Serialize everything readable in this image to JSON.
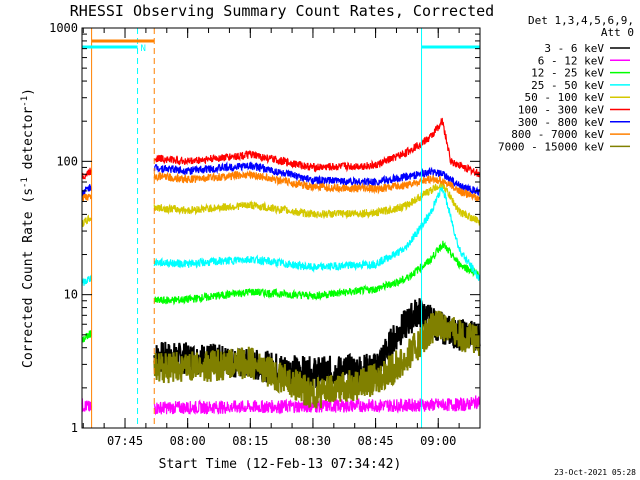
{
  "title": "RHESSI Observing Summary Count Rates, Corrected",
  "footer_date": "23-Oct-2021 05:28",
  "legend": {
    "header": [
      "Det 1,3,4,5,6,9,",
      "Att 0"
    ],
    "entries": [
      {
        "label": "3 - 6 keV",
        "color": "#000000"
      },
      {
        "label": "6 - 12 keV",
        "color": "#ff00ff"
      },
      {
        "label": "12 - 25 keV",
        "color": "#00ff00"
      },
      {
        "label": "25 - 50 keV",
        "color": "#00ffff"
      },
      {
        "label": "50 - 100 keV",
        "color": "#d4c800"
      },
      {
        "label": "100 - 300 keV",
        "color": "#ff0000"
      },
      {
        "label": "300 - 800 keV",
        "color": "#0000ff"
      },
      {
        "label": "800 - 7000 keV",
        "color": "#ff8000"
      },
      {
        "label": "7000 - 15000 keV",
        "color": "#808000"
      }
    ]
  },
  "chart_data": {
    "type": "line",
    "title": "RHESSI Observing Summary Count Rates, Corrected",
    "xlabel": "Start Time (12-Feb-13 07:34:42)",
    "ylabel": "Corrected Count Rate (s^-1 detector^-1)",
    "ylabel_parts": {
      "main": "Corrected Count Rate (s",
      "sup1": "-1",
      "mid": " detector",
      "sup2": "-1",
      "end": ")"
    },
    "y_scale": "log",
    "ylim": [
      1,
      1000
    ],
    "xlim": [
      "07:34:42",
      "09:10:00"
    ],
    "x_ticks": [
      "07:45",
      "08:00",
      "08:15",
      "08:30",
      "08:45",
      "09:00"
    ],
    "y_ticks": [
      "1",
      "10",
      "100",
      "1000"
    ],
    "annotations": {
      "night_label": "N",
      "night_bar_color": "#00ffff",
      "saa_bar_color": "#ff8000",
      "night_markers": [
        "07:34:42",
        "07:48:00",
        "08:56:00",
        "09:10:00"
      ],
      "saa_markers": [
        "07:37:00",
        "07:52:00"
      ]
    },
    "segments": [
      [
        "07:34:42",
        "07:37:00"
      ],
      [
        "07:52:00",
        "09:10:00"
      ]
    ],
    "series": [
      {
        "name": "3 - 6 keV",
        "color": "#000000",
        "points": [
          [
            "07:52",
            "3.4"
          ],
          [
            "08:05",
            "3.3"
          ],
          [
            "08:15",
            "3.0"
          ],
          [
            "08:30",
            "2.6"
          ],
          [
            "08:45",
            "2.8"
          ],
          [
            "08:50",
            "5.0"
          ],
          [
            "08:55",
            "7.5"
          ],
          [
            "09:00",
            "5.8"
          ],
          [
            "09:05",
            "5.0"
          ],
          [
            "09:10",
            "5.0"
          ]
        ]
      },
      {
        "name": "6 - 12 keV",
        "color": "#ff00ff",
        "points": [
          [
            "07:34:42",
            "1.5"
          ],
          [
            "07:37",
            "1.4"
          ],
          [
            "09:07",
            "1.5"
          ],
          [
            "09:10",
            "1.6"
          ]
        ]
      },
      {
        "name": "12 - 25 keV",
        "color": "#00ff00",
        "points": [
          [
            "07:34:42",
            "4.5"
          ],
          [
            "07:37",
            "5.2"
          ],
          [
            "07:52",
            "9.0"
          ],
          [
            "08:00",
            "9.2"
          ],
          [
            "08:15",
            "10.5"
          ],
          [
            "08:30",
            "9.8"
          ],
          [
            "08:45",
            "11.0"
          ],
          [
            "08:52",
            "13.0"
          ],
          [
            "08:58",
            "18.0"
          ],
          [
            "09:01",
            "24.0"
          ],
          [
            "09:05",
            "17.0"
          ],
          [
            "09:10",
            "14.0"
          ]
        ]
      },
      {
        "name": "25 - 50 keV",
        "color": "#00ffff",
        "points": [
          [
            "07:34:42",
            "12.0"
          ],
          [
            "07:37",
            "13.5"
          ],
          [
            "07:52",
            "17.5"
          ],
          [
            "08:00",
            "17.0"
          ],
          [
            "08:15",
            "18.5"
          ],
          [
            "08:30",
            "16.0"
          ],
          [
            "08:45",
            "17.0"
          ],
          [
            "08:52",
            "22.0"
          ],
          [
            "08:58",
            "40.0"
          ],
          [
            "09:01",
            "65.0"
          ],
          [
            "09:05",
            "22.0"
          ],
          [
            "09:10",
            "13.0"
          ]
        ]
      },
      {
        "name": "50 - 100 keV",
        "color": "#d4c800",
        "points": [
          [
            "07:34:42",
            "34.0"
          ],
          [
            "07:37",
            "38.0"
          ],
          [
            "07:52",
            "45.0"
          ],
          [
            "08:00",
            "43.0"
          ],
          [
            "08:15",
            "47.0"
          ],
          [
            "08:30",
            "40.0"
          ],
          [
            "08:45",
            "41.0"
          ],
          [
            "08:52",
            "46.0"
          ],
          [
            "08:58",
            "60.0"
          ],
          [
            "09:01",
            "68.0"
          ],
          [
            "09:05",
            "42.0"
          ],
          [
            "09:10",
            "35.0"
          ]
        ]
      },
      {
        "name": "100 - 300 keV",
        "color": "#ff0000",
        "points": [
          [
            "07:34:42",
            "76.0"
          ],
          [
            "07:37",
            "85.0"
          ],
          [
            "07:52",
            "106.0"
          ],
          [
            "08:00",
            "100.0"
          ],
          [
            "08:15",
            "112.0"
          ],
          [
            "08:30",
            "90.0"
          ],
          [
            "08:45",
            "93.0"
          ],
          [
            "08:52",
            "115.0"
          ],
          [
            "08:58",
            "150.0"
          ],
          [
            "09:01",
            "200.0"
          ],
          [
            "09:03",
            "100.0"
          ],
          [
            "09:10",
            "80.0"
          ]
        ]
      },
      {
        "name": "300 - 800 keV",
        "color": "#0000ff",
        "points": [
          [
            "07:34:42",
            "58.0"
          ],
          [
            "07:37",
            "65.0"
          ],
          [
            "07:52",
            "90.0"
          ],
          [
            "08:00",
            "85.0"
          ],
          [
            "08:15",
            "93.0"
          ],
          [
            "08:30",
            "72.0"
          ],
          [
            "08:45",
            "70.0"
          ],
          [
            "08:52",
            "76.0"
          ],
          [
            "08:58",
            "83.0"
          ],
          [
            "09:01",
            "80.0"
          ],
          [
            "09:05",
            "66.0"
          ],
          [
            "09:10",
            "58.0"
          ]
        ]
      },
      {
        "name": "800 - 7000 keV",
        "color": "#ff8000",
        "points": [
          [
            "07:34:42",
            "52.0"
          ],
          [
            "07:37",
            "56.0"
          ],
          [
            "07:52",
            "78.0"
          ],
          [
            "08:00",
            "73.0"
          ],
          [
            "08:15",
            "80.0"
          ],
          [
            "08:30",
            "64.0"
          ],
          [
            "08:45",
            "62.0"
          ],
          [
            "08:52",
            "66.0"
          ],
          [
            "08:58",
            "73.0"
          ],
          [
            "09:01",
            "72.0"
          ],
          [
            "09:05",
            "60.0"
          ],
          [
            "09:10",
            "52.0"
          ]
        ]
      },
      {
        "name": "7000 - 15000 keV",
        "color": "#808000",
        "points": [
          [
            "07:52",
            "2.8"
          ],
          [
            "08:05",
            "2.9"
          ],
          [
            "08:15",
            "3.1"
          ],
          [
            "08:30",
            "1.8"
          ],
          [
            "08:45",
            "2.3"
          ],
          [
            "08:52",
            "3.2"
          ],
          [
            "08:58",
            "5.5"
          ],
          [
            "09:01",
            "6.0"
          ],
          [
            "09:05",
            "5.0"
          ],
          [
            "09:10",
            "4.5"
          ]
        ]
      }
    ]
  }
}
